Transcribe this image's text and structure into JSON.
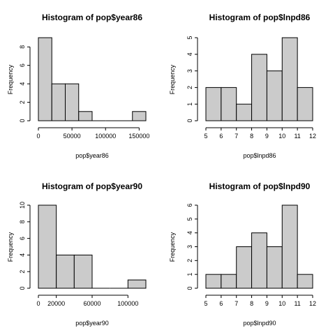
{
  "chart_data": [
    {
      "type": "bar",
      "title": "Histogram of pop$year86",
      "xlabel": "pop$year86",
      "ylabel": "Frequency",
      "bin_edges": [
        0,
        20000,
        40000,
        60000,
        80000,
        100000,
        120000,
        140000,
        160000
      ],
      "values": [
        9,
        4,
        4,
        1,
        0,
        0,
        0,
        1
      ],
      "xticks": [
        0,
        50000,
        100000,
        150000
      ],
      "xtick_labels": [
        "0",
        "50000",
        "100000",
        "150000"
      ],
      "yticks": [
        0,
        2,
        4,
        6,
        8
      ],
      "xlim": [
        0,
        160000
      ],
      "ylim": [
        0,
        9
      ]
    },
    {
      "type": "bar",
      "title": "Histogram of pop$lnpd86",
      "xlabel": "pop$lnpd86",
      "ylabel": "Frequency",
      "bin_edges": [
        5,
        6,
        7,
        8,
        9,
        10,
        11,
        12
      ],
      "values": [
        2,
        2,
        1,
        4,
        3,
        5,
        2
      ],
      "xticks": [
        5,
        6,
        7,
        8,
        9,
        10,
        11,
        12
      ],
      "xtick_labels": [
        "5",
        "6",
        "7",
        "8",
        "9",
        "10",
        "11",
        "12"
      ],
      "yticks": [
        0,
        1,
        2,
        3,
        4,
        5
      ],
      "xlim": [
        5,
        12
      ],
      "ylim": [
        0,
        5
      ]
    },
    {
      "type": "bar",
      "title": "Histogram of pop$year90",
      "xlabel": "pop$year90",
      "ylabel": "Frequency",
      "bin_edges": [
        0,
        20000,
        40000,
        60000,
        80000,
        100000,
        120000
      ],
      "values": [
        10,
        4,
        4,
        0,
        0,
        1
      ],
      "xticks": [
        0,
        20000,
        60000,
        100000
      ],
      "xtick_labels": [
        "0",
        "20000",
        "60000",
        "100000"
      ],
      "yticks": [
        0,
        2,
        4,
        6,
        8,
        10
      ],
      "xlim": [
        0,
        120000
      ],
      "ylim": [
        0,
        10
      ]
    },
    {
      "type": "bar",
      "title": "Histogram of pop$lnpd90",
      "xlabel": "pop$lnpd90",
      "ylabel": "Frequency",
      "bin_edges": [
        5,
        6,
        7,
        8,
        9,
        10,
        11,
        12
      ],
      "values": [
        1,
        1,
        3,
        4,
        3,
        6,
        1
      ],
      "xticks": [
        5,
        6,
        7,
        8,
        9,
        10,
        11,
        12
      ],
      "xtick_labels": [
        "5",
        "6",
        "7",
        "8",
        "9",
        "10",
        "11",
        "12"
      ],
      "yticks": [
        0,
        1,
        2,
        3,
        4,
        5,
        6
      ],
      "xlim": [
        5,
        12
      ],
      "ylim": [
        0,
        6
      ]
    }
  ]
}
